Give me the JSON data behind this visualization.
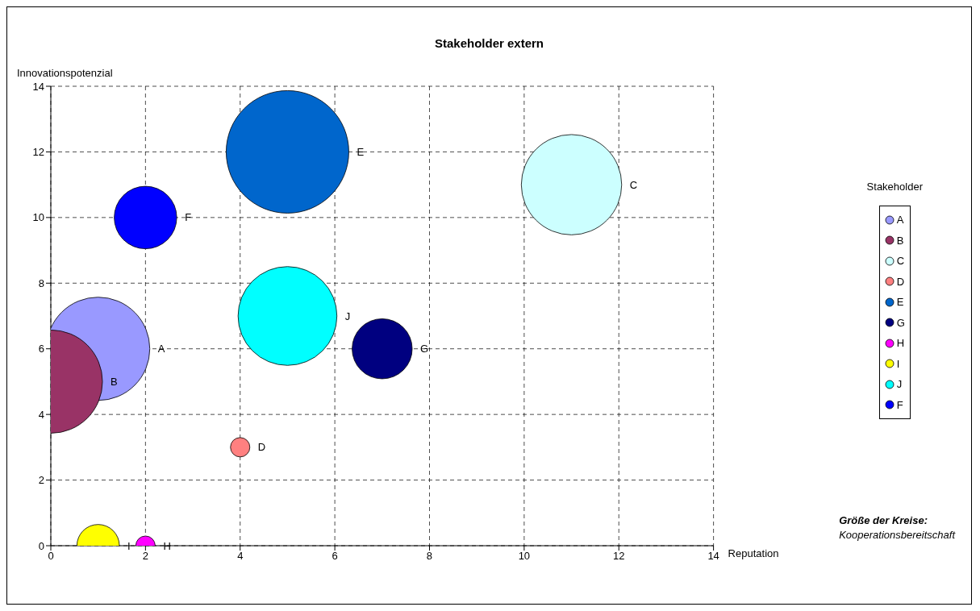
{
  "chart_data": {
    "type": "bubble",
    "title": "Stakeholder extern",
    "xlabel": "Reputation",
    "ylabel": "Innovationspotenzial",
    "legend_title": "Stakeholder",
    "annotations": [
      "Größe der Kreise:",
      "Kooperationsbereitschaft"
    ],
    "xlim": [
      0,
      14
    ],
    "xticks": [
      0,
      2,
      4,
      6,
      8,
      10,
      12,
      14
    ],
    "ylim": [
      0,
      14
    ],
    "yticks": [
      0,
      2,
      4,
      6,
      8,
      10,
      12,
      14
    ],
    "grid": true,
    "legend": "right",
    "line_style": "dashed",
    "series": [
      {
        "name": "A",
        "color": "#9999ff",
        "x": [
          1
        ],
        "values": [
          6
        ],
        "sizes": [
          0.71
        ]
      },
      {
        "name": "B",
        "color": "#993366",
        "x": [
          0
        ],
        "values": [
          5
        ],
        "sizes": [
          0.71
        ]
      },
      {
        "name": "C",
        "color": "#ccffff",
        "x": [
          11
        ],
        "values": [
          11
        ],
        "sizes": [
          0.67
        ]
      },
      {
        "name": "D",
        "color": "#ff8080",
        "x": [
          4
        ],
        "values": [
          3
        ],
        "sizes": [
          0.025
        ]
      },
      {
        "name": "E",
        "color": "#0066cc",
        "x": [
          5
        ],
        "values": [
          12
        ],
        "sizes": [
          1
        ]
      },
      {
        "name": "G",
        "color": "#000080",
        "x": [
          7
        ],
        "values": [
          6
        ],
        "sizes": [
          0.24
        ]
      },
      {
        "name": "H",
        "color": "#ff00ff",
        "x": [
          2
        ],
        "values": [
          0
        ],
        "sizes": [
          0.025
        ]
      },
      {
        "name": "I",
        "color": "#ffff00",
        "x": [
          1
        ],
        "values": [
          0
        ],
        "sizes": [
          0.12
        ]
      },
      {
        "name": "J",
        "color": "#00ffff",
        "x": [
          5
        ],
        "values": [
          7
        ],
        "sizes": [
          0.65
        ]
      },
      {
        "name": "F",
        "color": "#0000ff",
        "x": [
          2
        ],
        "values": [
          10
        ],
        "sizes": [
          0.26
        ]
      }
    ]
  }
}
